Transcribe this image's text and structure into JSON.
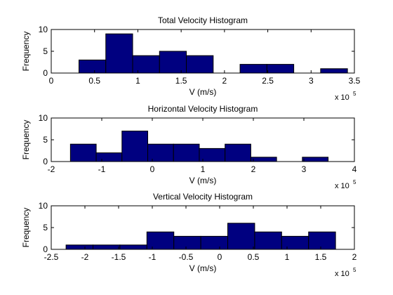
{
  "figure": {
    "background": "#ffffff",
    "bar_color": "#000080",
    "edge_color": "#000000"
  },
  "chart_data": [
    {
      "type": "bar",
      "title": "Total Velocity Histogram",
      "xlabel": "V (m/s)",
      "ylabel": "Frequency",
      "x_multiplier": "x 10",
      "x_exponent": "5",
      "xlim": [
        0,
        3.5
      ],
      "ylim": [
        0,
        10
      ],
      "xticks": [
        "0",
        "0.5",
        "1",
        "1.5",
        "2",
        "2.5",
        "3",
        "3.5"
      ],
      "xtick_values": [
        0,
        0.5,
        1,
        1.5,
        2,
        2.5,
        3,
        3.5
      ],
      "yticks": [
        "0",
        "5",
        "10"
      ],
      "ytick_values": [
        0,
        5,
        10
      ],
      "bin_edges": [
        0.32,
        0.63,
        0.94,
        1.25,
        1.56,
        1.87,
        2.18,
        2.49,
        2.8,
        3.11,
        3.42
      ],
      "counts": [
        3,
        9,
        4,
        5,
        4,
        0,
        2,
        2,
        0,
        1
      ]
    },
    {
      "type": "bar",
      "title": "Horizontal Velocity Histogram",
      "xlabel": "V (m/s)",
      "ylabel": "Frequency",
      "x_multiplier": "x 10",
      "x_exponent": "5",
      "xlim": [
        -2,
        4
      ],
      "ylim": [
        0,
        10
      ],
      "xticks": [
        "-2",
        "-1",
        "0",
        "1",
        "2",
        "3",
        "4"
      ],
      "xtick_values": [
        -2,
        -1,
        0,
        1,
        2,
        3,
        4
      ],
      "yticks": [
        "0",
        "5",
        "10"
      ],
      "ytick_values": [
        0,
        5,
        10
      ],
      "bin_edges": [
        -1.62,
        -1.11,
        -0.6,
        -0.09,
        0.42,
        0.93,
        1.44,
        1.95,
        2.46,
        2.97,
        3.48
      ],
      "counts": [
        4,
        2,
        7,
        4,
        4,
        3,
        4,
        1,
        0,
        1
      ]
    },
    {
      "type": "bar",
      "title": "Vertical Velocity Histogram",
      "xlabel": "V (m/s)",
      "ylabel": "Frequency",
      "x_multiplier": "x 10",
      "x_exponent": "5",
      "xlim": [
        -2.5,
        2
      ],
      "ylim": [
        0,
        10
      ],
      "xticks": [
        "-2.5",
        "-2",
        "-1.5",
        "-1",
        "-0.5",
        "0",
        "0.5",
        "1",
        "1.5",
        "2"
      ],
      "xtick_values": [
        -2.5,
        -2,
        -1.5,
        -1,
        -0.5,
        0,
        0.5,
        1,
        1.5,
        2
      ],
      "yticks": [
        "0",
        "5",
        "10"
      ],
      "ytick_values": [
        0,
        5,
        10
      ],
      "bin_edges": [
        -2.28,
        -1.88,
        -1.48,
        -1.08,
        -0.68,
        -0.28,
        0.12,
        0.52,
        0.92,
        1.32,
        1.72
      ],
      "counts": [
        1,
        1,
        1,
        4,
        3,
        3,
        6,
        4,
        3,
        4
      ]
    }
  ]
}
